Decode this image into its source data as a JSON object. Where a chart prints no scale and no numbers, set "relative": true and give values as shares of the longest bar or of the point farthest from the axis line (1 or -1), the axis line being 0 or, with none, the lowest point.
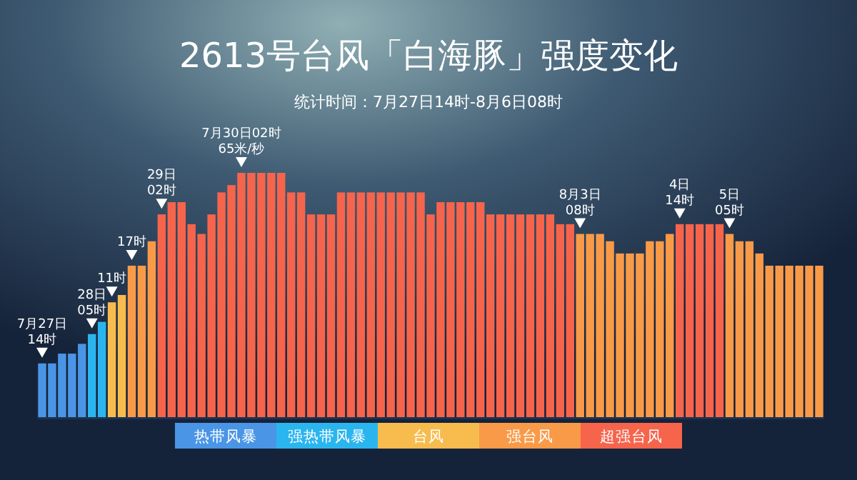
{
  "chart_data": {
    "type": "bar",
    "title": "2613号台风「白海豚」强度变化",
    "subtitle": "统计时间：7月27日14时-8月6日08时",
    "relative": true,
    "legend": "bottom",
    "categories": [
      "7月27日\n14时",
      null,
      null,
      null,
      null,
      "28日\n05时",
      null,
      "11时",
      null,
      "17时",
      null,
      null,
      "29日\n02时",
      null,
      null,
      null,
      null,
      null,
      null,
      null,
      "7月30日02时\n65米/秒",
      null,
      null,
      null,
      null,
      null,
      null,
      null,
      null,
      null,
      null,
      null,
      null,
      null,
      null,
      null,
      null,
      null,
      null,
      null,
      null,
      null,
      null,
      null,
      null,
      null,
      null,
      null,
      null,
      null,
      null,
      null,
      null,
      null,
      "8月3日\n08时",
      null,
      null,
      null,
      null,
      null,
      null,
      null,
      null,
      null,
      "4日\n14时",
      null,
      null,
      null,
      null,
      "5日\n05时",
      null,
      null,
      null,
      null,
      null,
      null,
      null,
      null,
      null
    ],
    "series": [
      {
        "name": "热带风暴",
        "color": "#4a95e6",
        "values": [
          0.22,
          0.22,
          0.26,
          0.26,
          0.3,
          null,
          null,
          null,
          null,
          null,
          null,
          null,
          null,
          null,
          null,
          null,
          null,
          null,
          null,
          null,
          null,
          null,
          null,
          null,
          null,
          null,
          null,
          null,
          null,
          null,
          null,
          null,
          null,
          null,
          null,
          null,
          null,
          null,
          null,
          null,
          null,
          null,
          null,
          null,
          null,
          null,
          null,
          null,
          null,
          null,
          null,
          null,
          null,
          null,
          null,
          null,
          null,
          null,
          null,
          null,
          null,
          null,
          null,
          null,
          null,
          null,
          null,
          null,
          null,
          null,
          null,
          null,
          null,
          null,
          null,
          null,
          null,
          null,
          null
        ]
      },
      {
        "name": "强热带风暴",
        "color": "#2bb5ef",
        "values": [
          null,
          null,
          null,
          null,
          null,
          0.34,
          0.39,
          null,
          null,
          null,
          null,
          null,
          null,
          null,
          null,
          null,
          null,
          null,
          null,
          null,
          null,
          null,
          null,
          null,
          null,
          null,
          null,
          null,
          null,
          null,
          null,
          null,
          null,
          null,
          null,
          null,
          null,
          null,
          null,
          null,
          null,
          null,
          null,
          null,
          null,
          null,
          null,
          null,
          null,
          null,
          null,
          null,
          null,
          null,
          null,
          null,
          null,
          null,
          null,
          null,
          null,
          null,
          null,
          null,
          null,
          null,
          null,
          null,
          null,
          null,
          null,
          null,
          null,
          null,
          null,
          null,
          null,
          null,
          null
        ]
      },
      {
        "name": "台风",
        "color": "#f8bc4e",
        "values": [
          null,
          null,
          null,
          null,
          null,
          null,
          null,
          0.47,
          0.5,
          null,
          null,
          null,
          null,
          null,
          null,
          null,
          null,
          null,
          null,
          null,
          null,
          null,
          null,
          null,
          null,
          null,
          null,
          null,
          null,
          null,
          null,
          null,
          null,
          null,
          null,
          null,
          null,
          null,
          null,
          null,
          null,
          null,
          null,
          null,
          null,
          null,
          null,
          null,
          null,
          null,
          null,
          null,
          null,
          null,
          null,
          null,
          null,
          null,
          null,
          null,
          null,
          null,
          null,
          null,
          null,
          null,
          null,
          null,
          null,
          null,
          null,
          null,
          null,
          null,
          null,
          null,
          null,
          null,
          null
        ]
      },
      {
        "name": "强台风",
        "color": "#f99a48",
        "values": [
          null,
          null,
          null,
          null,
          null,
          null,
          null,
          null,
          null,
          0.62,
          0.62,
          0.72,
          null,
          null,
          null,
          null,
          null,
          null,
          null,
          null,
          null,
          null,
          null,
          null,
          null,
          null,
          null,
          null,
          null,
          null,
          null,
          null,
          null,
          null,
          null,
          null,
          null,
          null,
          null,
          null,
          null,
          null,
          null,
          null,
          null,
          null,
          null,
          null,
          null,
          null,
          null,
          null,
          null,
          null,
          0.75,
          0.75,
          0.75,
          0.72,
          0.67,
          0.67,
          0.67,
          0.72,
          0.72,
          0.75,
          null,
          null,
          null,
          null,
          null,
          0.75,
          0.72,
          0.72,
          0.67,
          0.62,
          0.62,
          0.62,
          0.62,
          0.62,
          0.62
        ]
      },
      {
        "name": "超强台风",
        "color": "#f6644c",
        "values": [
          null,
          null,
          null,
          null,
          null,
          null,
          null,
          null,
          null,
          null,
          null,
          null,
          0.83,
          0.88,
          0.88,
          0.79,
          0.75,
          0.83,
          0.92,
          0.95,
          1,
          1,
          1,
          1,
          1,
          0.92,
          0.92,
          0.83,
          0.83,
          0.83,
          0.92,
          0.92,
          0.92,
          0.92,
          0.92,
          0.92,
          0.92,
          0.92,
          0.92,
          0.83,
          0.88,
          0.88,
          0.88,
          0.88,
          0.88,
          0.83,
          0.83,
          0.83,
          0.83,
          0.83,
          0.83,
          0.83,
          0.79,
          0.79,
          null,
          null,
          null,
          null,
          null,
          null,
          null,
          null,
          null,
          null,
          0.79,
          0.79,
          0.79,
          0.79,
          0.79,
          null,
          null,
          null,
          null,
          null,
          null,
          null,
          null,
          null,
          null
        ]
      }
    ]
  }
}
